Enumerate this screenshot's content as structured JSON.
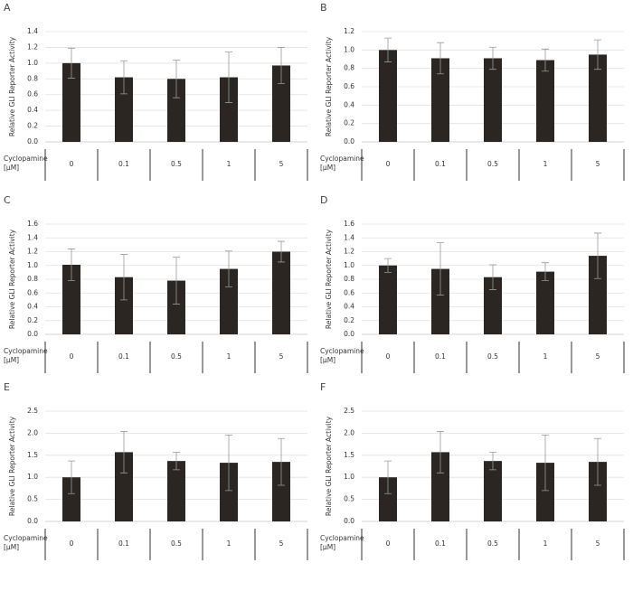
{
  "chart_data": [
    {
      "type": "bar",
      "label": "A",
      "y_label": "Relative GLI Reporter Activity",
      "x_label": [
        "Cyclopamine",
        "[μM]"
      ],
      "categories": [
        "0",
        "0.1",
        "0.5",
        "1",
        "5"
      ],
      "values": [
        1.0,
        0.82,
        0.8,
        0.82,
        0.97
      ],
      "errors": [
        0.19,
        0.21,
        0.24,
        0.32,
        0.23
      ],
      "color": "#2b2622",
      "ylim": [
        0,
        1.4
      ],
      "grid": true,
      "yticks": [
        {
          "value": 0,
          "label": "0.0"
        },
        {
          "value": 0.2,
          "label": "0.2"
        },
        {
          "value": 0.4,
          "label": "0.4"
        },
        {
          "value": 0.6,
          "label": "0.6"
        },
        {
          "value": 0.8,
          "label": "0.8"
        },
        {
          "value": 1.0,
          "label": "1.0"
        },
        {
          "value": 1.2,
          "label": "1.2"
        },
        {
          "value": 1.4,
          "label": "1.4"
        }
      ]
    },
    {
      "type": "bar",
      "label": "B",
      "y_label": "Relative GLI Reporter Activity",
      "x_label": [
        "Cyclopamine",
        "[μM]"
      ],
      "categories": [
        "0",
        "0.1",
        "0.5",
        "1",
        "5"
      ],
      "values": [
        1.0,
        0.91,
        0.91,
        0.89,
        0.95
      ],
      "errors": [
        0.13,
        0.17,
        0.12,
        0.12,
        0.16
      ],
      "color": "#2b2622",
      "ylim": [
        0,
        1.2
      ],
      "grid": true,
      "yticks": [
        {
          "value": 0,
          "label": "0.0"
        },
        {
          "value": 0.2,
          "label": "0.2"
        },
        {
          "value": 0.4,
          "label": "0.4"
        },
        {
          "value": 0.6,
          "label": "0.6"
        },
        {
          "value": 0.8,
          "label": "0.8"
        },
        {
          "value": 1.0,
          "label": "1.0"
        },
        {
          "value": 1.2,
          "label": "1.2"
        }
      ]
    },
    {
      "type": "bar",
      "label": "C",
      "y_label": "Relative GLI Reporter Activity",
      "x_label": [
        "Cyclopamine",
        "[μM]"
      ],
      "categories": [
        "0",
        "0.1",
        "0.5",
        "1",
        "5"
      ],
      "values": [
        1.01,
        0.83,
        0.78,
        0.95,
        1.2
      ],
      "errors": [
        0.23,
        0.33,
        0.34,
        0.26,
        0.15
      ],
      "color": "#2b2622",
      "ylim": [
        0,
        1.6
      ],
      "grid": true,
      "yticks": [
        {
          "value": 0,
          "label": "0.0"
        },
        {
          "value": 0.2,
          "label": "0.2"
        },
        {
          "value": 0.4,
          "label": "0.4"
        },
        {
          "value": 0.6,
          "label": "0.6"
        },
        {
          "value": 0.8,
          "label": "0.8"
        },
        {
          "value": 1.0,
          "label": "1.0"
        },
        {
          "value": 1.2,
          "label": "1.2"
        },
        {
          "value": 1.4,
          "label": "1.4"
        },
        {
          "value": 1.6,
          "label": "1.6"
        }
      ]
    },
    {
      "type": "bar",
      "label": "D",
      "y_label": "Relative GLI Reporter Activity",
      "x_label": [
        "Cyclopamine",
        "[μM]"
      ],
      "categories": [
        "0",
        "0.1",
        "0.5",
        "1",
        "5"
      ],
      "values": [
        1.0,
        0.95,
        0.83,
        0.91,
        1.14
      ],
      "errors": [
        0.1,
        0.38,
        0.18,
        0.13,
        0.33
      ],
      "color": "#2b2622",
      "ylim": [
        0,
        1.6
      ],
      "grid": true,
      "yticks": [
        {
          "value": 0,
          "label": "0.0"
        },
        {
          "value": 0.2,
          "label": "0.2"
        },
        {
          "value": 0.4,
          "label": "0.4"
        },
        {
          "value": 0.6,
          "label": "0.6"
        },
        {
          "value": 0.8,
          "label": "0.8"
        },
        {
          "value": 1.0,
          "label": "1.0"
        },
        {
          "value": 1.2,
          "label": "1.2"
        },
        {
          "value": 1.4,
          "label": "1.4"
        },
        {
          "value": 1.6,
          "label": "1.6"
        }
      ]
    },
    {
      "type": "bar",
      "label": "E",
      "y_label": "Relative GLI Reporter Activity",
      "x_label": [
        "Cyclopamine",
        "[μM]"
      ],
      "categories": [
        "0",
        "0.1",
        "0.5",
        "1",
        "5"
      ],
      "values": [
        1.0,
        1.57,
        1.37,
        1.33,
        1.35
      ],
      "errors": [
        0.37,
        0.47,
        0.2,
        0.63,
        0.53
      ],
      "color": "#2b2622",
      "ylim": [
        0,
        2.5
      ],
      "grid": true,
      "yticks": [
        {
          "value": 0,
          "label": "0.0"
        },
        {
          "value": 0.5,
          "label": "0.5"
        },
        {
          "value": 1.0,
          "label": "1.0"
        },
        {
          "value": 1.5,
          "label": "1.5"
        },
        {
          "value": 2.0,
          "label": "2.0"
        },
        {
          "value": 2.5,
          "label": "2.5"
        }
      ]
    },
    {
      "type": "bar",
      "label": "F",
      "y_label": "Relative GLI Reporter Activity",
      "x_label": [
        "Cyclopamine",
        "[μM]"
      ],
      "categories": [
        "0",
        "0.1",
        "0.5",
        "1",
        "5"
      ],
      "values": [
        1.0,
        1.57,
        1.37,
        1.33,
        1.35
      ],
      "errors": [
        0.37,
        0.47,
        0.2,
        0.63,
        0.53
      ],
      "color": "#2b2622",
      "ylim": [
        0,
        2.5
      ],
      "grid": true,
      "yticks": [
        {
          "value": 0,
          "label": "0.0"
        },
        {
          "value": 0.5,
          "label": "0.5"
        },
        {
          "value": 1.0,
          "label": "1.0"
        },
        {
          "value": 1.5,
          "label": "1.5"
        },
        {
          "value": 2.0,
          "label": "2.0"
        },
        {
          "value": 2.5,
          "label": "2.5"
        }
      ]
    }
  ]
}
